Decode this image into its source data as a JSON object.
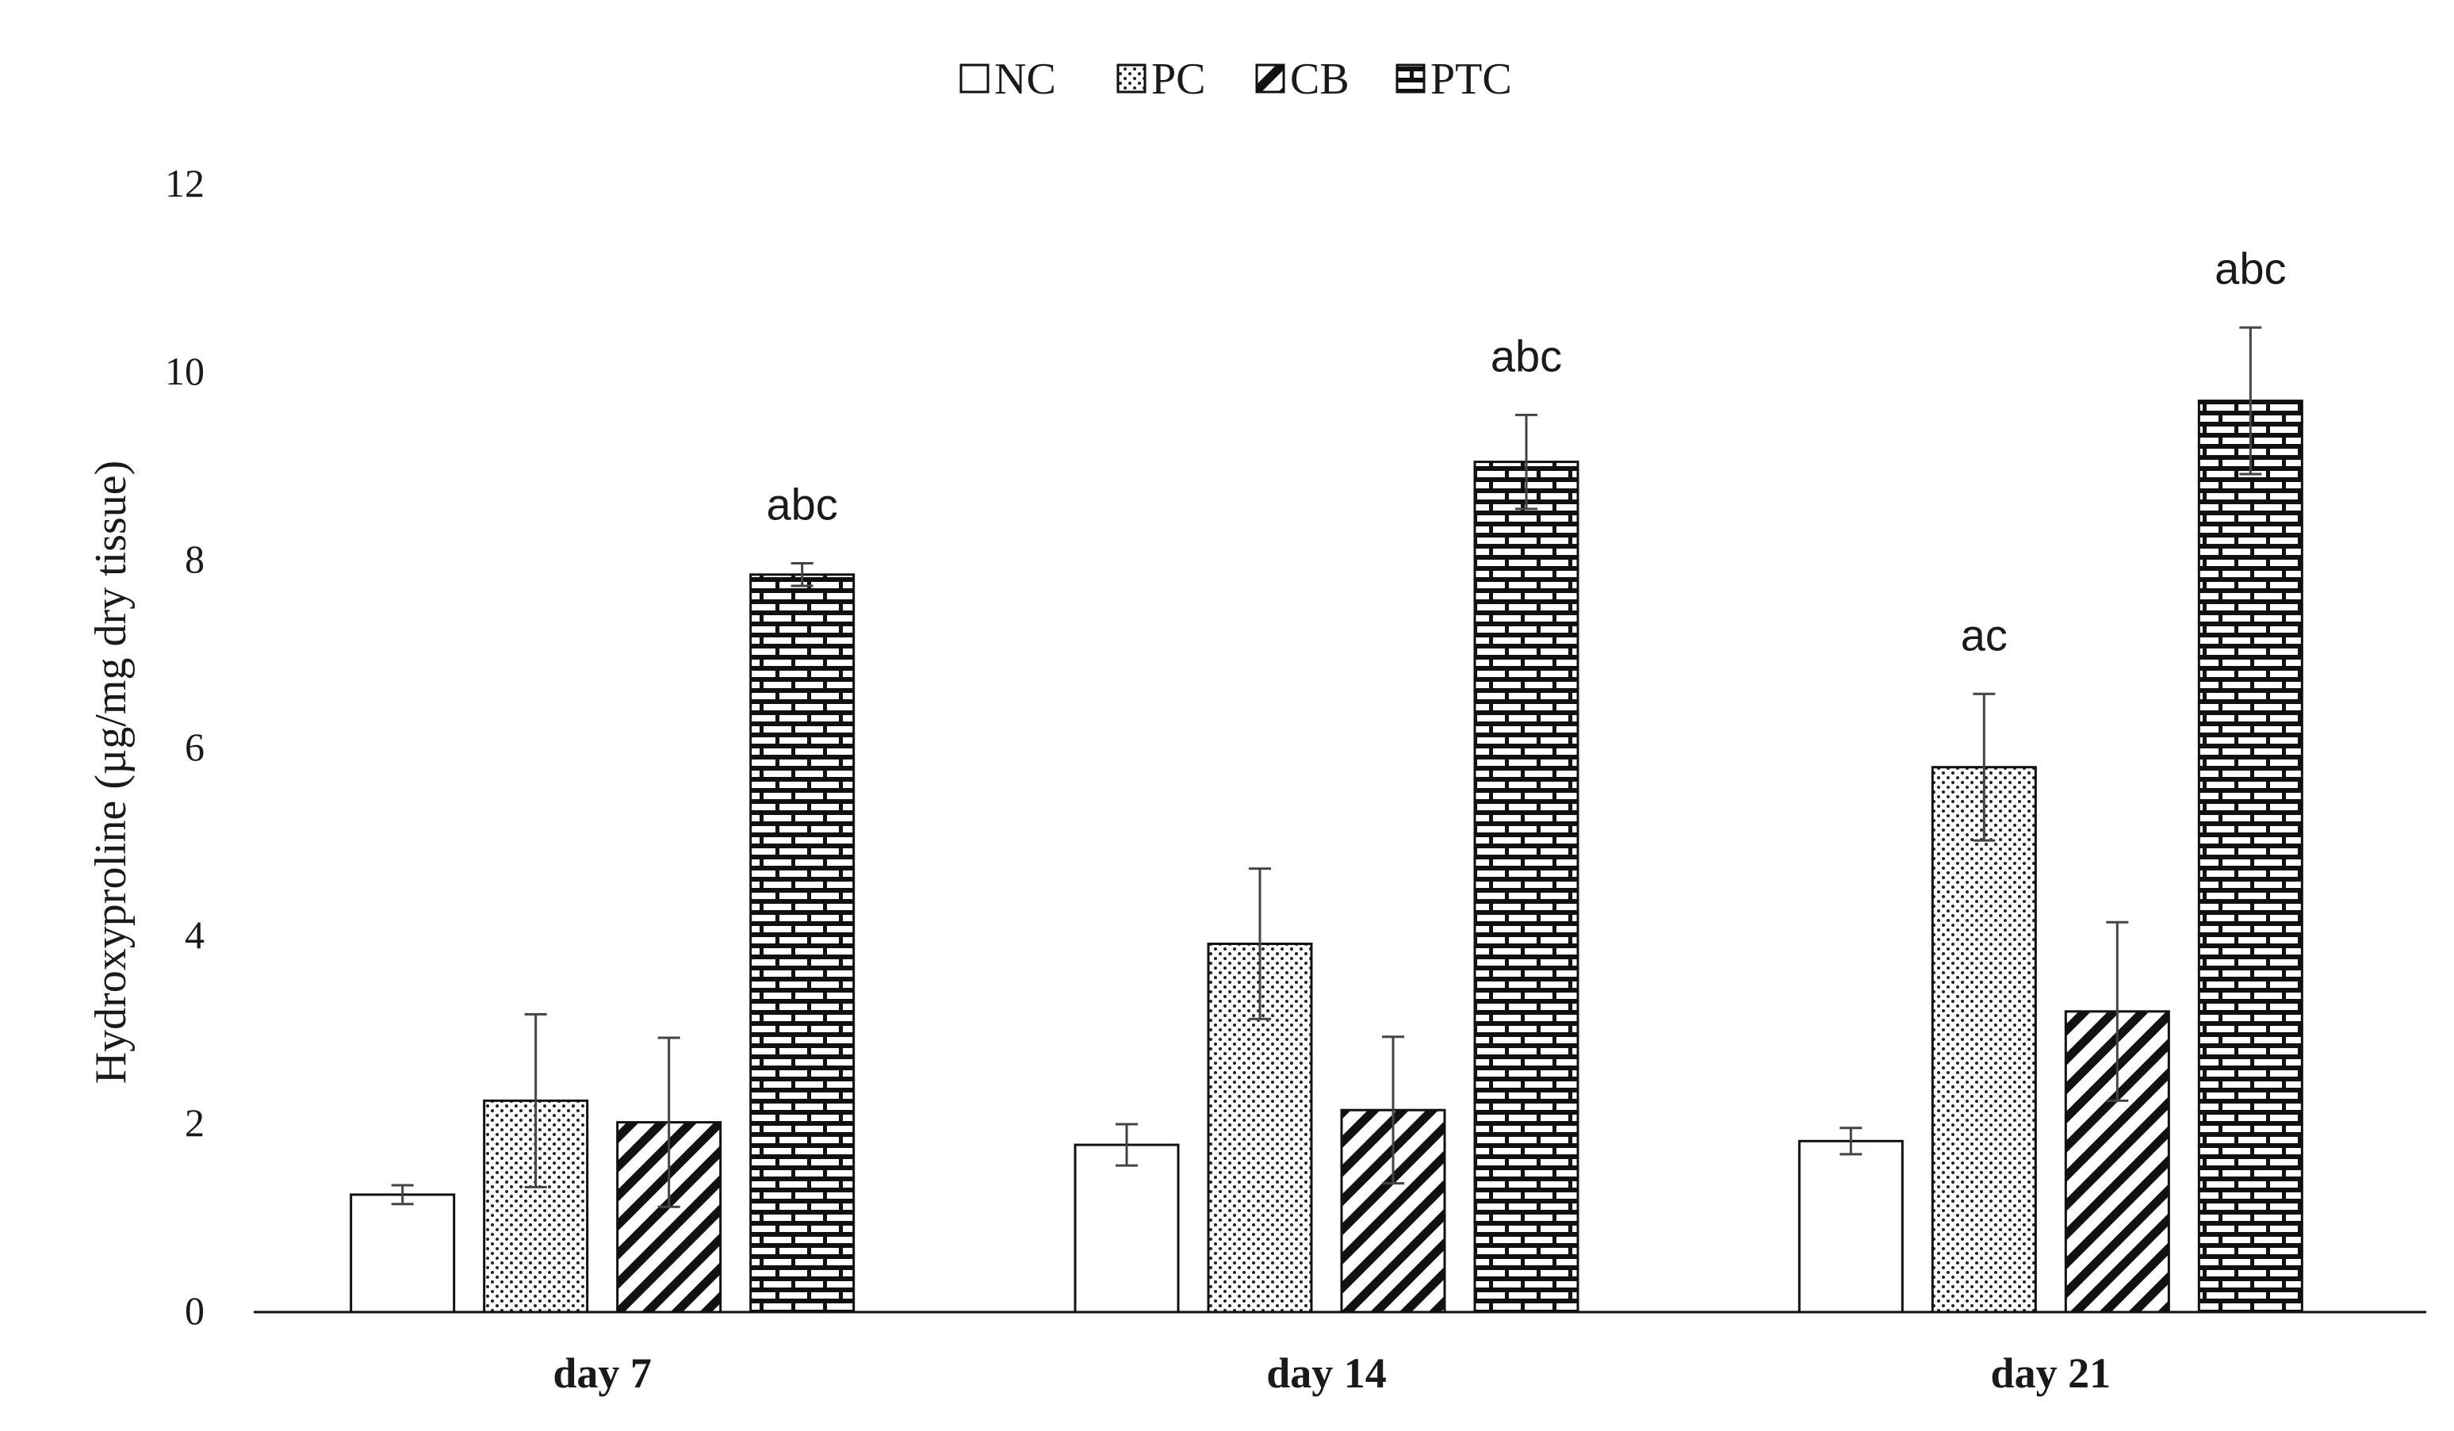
{
  "chart_data": {
    "type": "bar",
    "title": "",
    "xlabel": "",
    "ylabel": "Hydroxyproline (µg/mg dry tissue)",
    "ylim": [
      0,
      12
    ],
    "yticks": [
      "0",
      "2",
      "4",
      "6",
      "8",
      "10",
      "12"
    ],
    "categories": [
      "day 7",
      "day 14",
      "day 21"
    ],
    "legend_position": "top-center",
    "grid": false,
    "series": [
      {
        "name": "NC",
        "pattern": "none",
        "values": [
          1.25,
          1.78,
          1.82
        ],
        "errors": [
          0.1,
          0.22,
          0.14
        ],
        "labels": [
          "",
          "",
          ""
        ]
      },
      {
        "name": "PC",
        "pattern": "dots",
        "values": [
          2.25,
          3.92,
          5.8
        ],
        "errors": [
          0.92,
          0.8,
          0.78
        ],
        "labels": [
          "",
          "",
          "ac"
        ]
      },
      {
        "name": "CB",
        "pattern": "hatch",
        "values": [
          2.02,
          2.15,
          3.2
        ],
        "errors": [
          0.9,
          0.78,
          0.95
        ],
        "labels": [
          "",
          "",
          ""
        ]
      },
      {
        "name": "PTC",
        "pattern": "brick",
        "values": [
          7.85,
          9.05,
          9.7
        ],
        "errors": [
          0.12,
          0.5,
          0.78
        ],
        "labels": [
          "abc",
          "abc",
          "abc"
        ]
      }
    ]
  }
}
